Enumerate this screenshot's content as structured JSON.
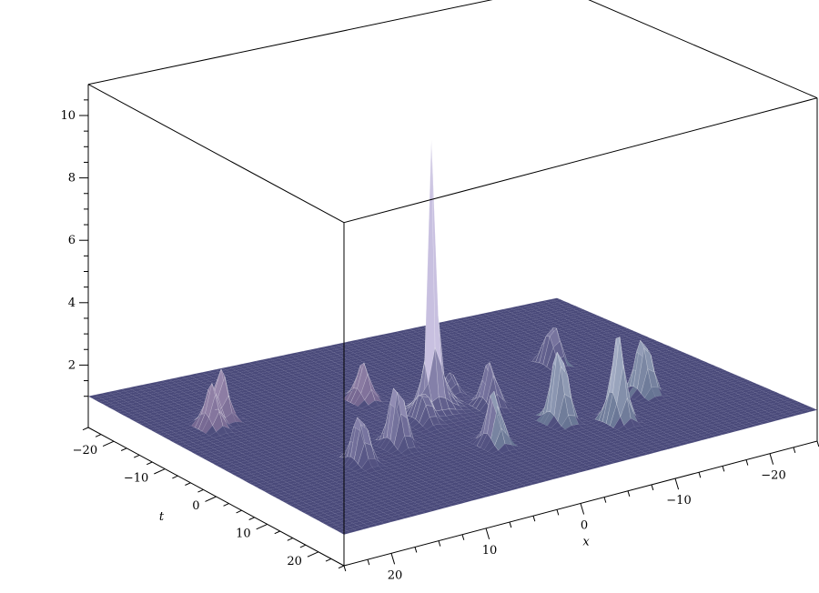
{
  "chart_data": {
    "type": "surface3d",
    "title": "",
    "xlabel": "x",
    "ylabel": "t",
    "zlabel": "",
    "xlim": [
      -25,
      25
    ],
    "ylim": [
      -25,
      25
    ],
    "zlim": [
      0,
      11
    ],
    "x_ticks": [
      20,
      10,
      0,
      -10,
      -20
    ],
    "y_ticks": [
      -20,
      -10,
      0,
      10,
      20
    ],
    "z_ticks": [
      2,
      4,
      6,
      8,
      10
    ],
    "x_tick_labels": [
      "20",
      "10",
      "0",
      "−10",
      "−20"
    ],
    "y_tick_labels": [
      "−20",
      "−10",
      "0",
      "10",
      "20"
    ],
    "z_tick_labels": [
      "2",
      "4",
      "6",
      "8",
      "10"
    ],
    "baseline_z": 1,
    "central_peak": {
      "x": 2,
      "t": 0,
      "height": 11
    },
    "peaks": [
      {
        "x": 20,
        "t": -10,
        "height": 2.4
      },
      {
        "x": 18,
        "t": -12,
        "height": 2.6
      },
      {
        "x": 14,
        "t": 8,
        "height": 2.7
      },
      {
        "x": 9,
        "t": 6,
        "height": 3.2
      },
      {
        "x": 5,
        "t": -8,
        "height": 2.2
      },
      {
        "x": 2,
        "t": 12,
        "height": 2.8
      },
      {
        "x": -3,
        "t": 2,
        "height": 2.5
      },
      {
        "x": -6,
        "t": 10,
        "height": 3.6
      },
      {
        "x": -10,
        "t": 14,
        "height": 3.8
      },
      {
        "x": -14,
        "t": -6,
        "height": 2.4
      },
      {
        "x": -16,
        "t": 8,
        "height": 3.0
      },
      {
        "x": 0,
        "t": -2,
        "height": 1.8
      },
      {
        "x": -2,
        "t": -4,
        "height": 1.7
      },
      {
        "x": 4,
        "t": 2,
        "height": 1.9
      }
    ],
    "grid": false,
    "colors": {
      "surface_low": "#4a4a7a",
      "surface_mid": "#8a86b8",
      "surface_high": "#c8c0e0",
      "accent_pink": "#c89ab8",
      "accent_teal": "#9ac8c0"
    }
  }
}
